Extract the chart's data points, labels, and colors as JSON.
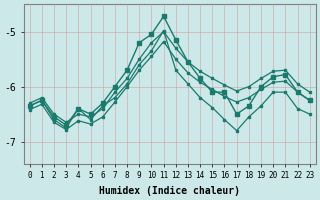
{
  "xlabel": "Humidex (Indice chaleur)",
  "background_color": "#cce8e8",
  "grid_color": "#b0cccc",
  "line_color": "#1a7a6e",
  "x_values": [
    0,
    1,
    2,
    3,
    4,
    5,
    6,
    7,
    8,
    9,
    10,
    11,
    12,
    13,
    14,
    15,
    16,
    17,
    18,
    19,
    20,
    21,
    22,
    23
  ],
  "ylim": [
    -7.4,
    -4.5
  ],
  "yticks": [
    -7,
    -6,
    -5
  ],
  "spike_line": [
    -6.35,
    -6.25,
    -6.55,
    -6.7,
    -6.4,
    -6.5,
    -6.3,
    -6.0,
    -5.7,
    -5.2,
    -5.05,
    -4.72,
    -5.15,
    -5.55,
    -5.85,
    -6.1,
    -6.1,
    -6.5,
    -6.35,
    -6.0,
    -5.82,
    -5.78,
    -6.1,
    -6.25
  ],
  "zigzag_line": [
    -6.35,
    -6.25,
    -6.6,
    -6.75,
    -6.4,
    -6.6,
    -6.35,
    -6.2,
    -5.95,
    -5.6,
    -5.35,
    -4.98,
    -5.7,
    -5.95,
    -6.2,
    -6.38,
    -6.6,
    -6.8,
    -6.55,
    -6.35,
    -6.1,
    -6.1,
    -6.4,
    -6.5
  ],
  "upper_band": [
    -6.3,
    -6.2,
    -6.5,
    -6.65,
    -6.5,
    -6.55,
    -6.4,
    -6.1,
    -5.85,
    -5.5,
    -5.2,
    -5.0,
    -5.3,
    -5.55,
    -5.72,
    -5.85,
    -5.97,
    -6.08,
    -6.0,
    -5.85,
    -5.72,
    -5.7,
    -5.95,
    -6.1
  ],
  "lower_band": [
    -6.42,
    -6.32,
    -6.65,
    -6.78,
    -6.62,
    -6.68,
    -6.55,
    -6.28,
    -6.0,
    -5.7,
    -5.45,
    -5.18,
    -5.5,
    -5.75,
    -5.92,
    -6.05,
    -6.18,
    -6.28,
    -6.2,
    -6.05,
    -5.92,
    -5.9,
    -6.1,
    -6.25
  ]
}
